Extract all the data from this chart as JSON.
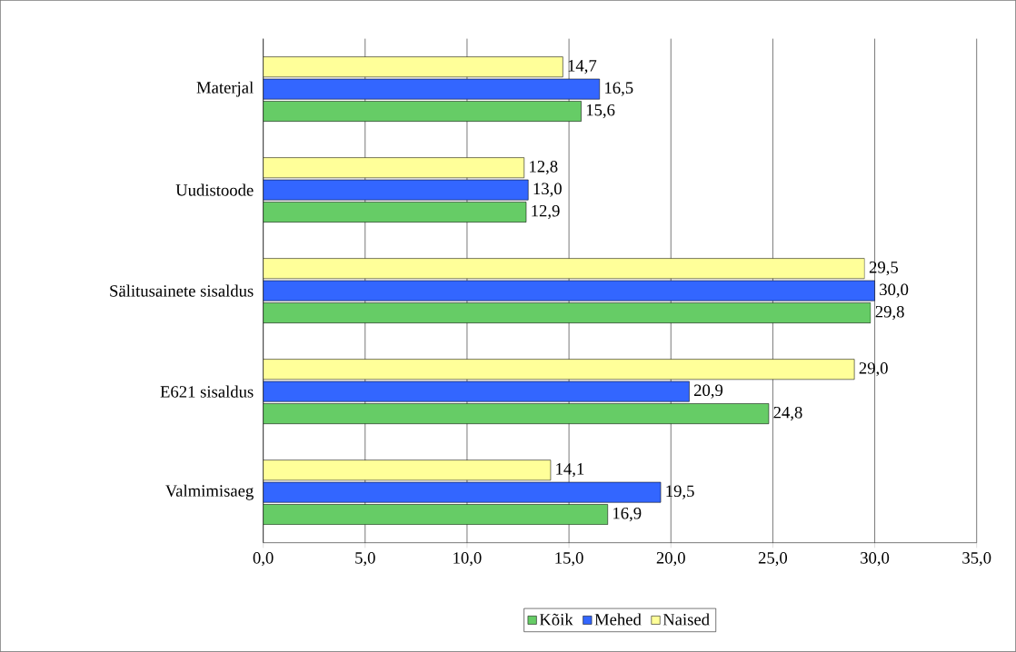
{
  "chart_data": {
    "type": "bar",
    "orientation": "horizontal",
    "categories": [
      "Materjal",
      "Uudistoode",
      "Sälitusainete sisaldus",
      "E621 sisaldus",
      "Valmimisaeg"
    ],
    "series": [
      {
        "name": "Kõik",
        "color": "#66cc66",
        "values": [
          15.6,
          12.9,
          29.8,
          24.8,
          16.9
        ],
        "value_labels": [
          "15,6",
          "12,9",
          "29,8",
          "24,8",
          "16,9"
        ]
      },
      {
        "name": "Mehed",
        "color": "#3366ff",
        "values": [
          16.5,
          13.0,
          30.0,
          20.9,
          19.5
        ],
        "value_labels": [
          "16,5",
          "13,0",
          "30,0",
          "20,9",
          "19,5"
        ]
      },
      {
        "name": "Naised",
        "color": "#ffff99",
        "values": [
          14.7,
          12.8,
          29.5,
          29.0,
          14.1
        ],
        "value_labels": [
          "14,7",
          "12,8",
          "29,5",
          "29,0",
          "14,1"
        ]
      }
    ],
    "xlim": [
      0,
      35
    ],
    "xticks": [
      {
        "value": 0,
        "label": "0,0"
      },
      {
        "value": 5,
        "label": "5,0"
      },
      {
        "value": 10,
        "label": "10,0"
      },
      {
        "value": 15,
        "label": "15,0"
      },
      {
        "value": 20,
        "label": "20,0"
      },
      {
        "value": 25,
        "label": "25,0"
      },
      {
        "value": 30,
        "label": "30,0"
      },
      {
        "value": 35,
        "label": "35,0"
      }
    ],
    "grid": "x",
    "legend": "bottom"
  }
}
